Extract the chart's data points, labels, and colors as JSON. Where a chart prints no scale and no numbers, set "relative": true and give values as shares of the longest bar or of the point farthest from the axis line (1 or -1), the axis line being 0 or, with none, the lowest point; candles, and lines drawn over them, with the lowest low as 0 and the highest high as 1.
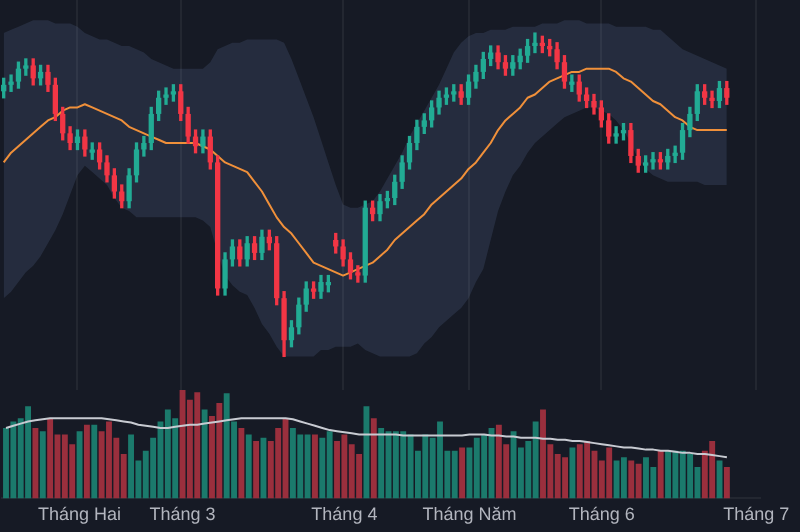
{
  "chart_data": [
    {
      "type": "candlestick",
      "relative": true,
      "tick_labels": false,
      "grid": "x",
      "categories": [
        null,
        null,
        null,
        null,
        null,
        null,
        null,
        null,
        null,
        null,
        null,
        null,
        null,
        null,
        null,
        null,
        null,
        null,
        null,
        null,
        null,
        null,
        null,
        null,
        null,
        null,
        null,
        null,
        null,
        null,
        null,
        null,
        null,
        null,
        null,
        null,
        null,
        null,
        null,
        null,
        null,
        null,
        null,
        null,
        null,
        null,
        null,
        null,
        null,
        null,
        null,
        null,
        null,
        null,
        null,
        null,
        null,
        null,
        null,
        null,
        null,
        null,
        null,
        null,
        null,
        null,
        null,
        null,
        null,
        null,
        null,
        null,
        null,
        null,
        null,
        null,
        null,
        null,
        null,
        null,
        null,
        null,
        null,
        null,
        null,
        null,
        null,
        null,
        null,
        null,
        null,
        null,
        null,
        null,
        null,
        null,
        null,
        null,
        null,
        null,
        null,
        null,
        null
      ],
      "ohlc": [
        [
          0.82,
          0.86,
          0.8,
          0.84
        ],
        [
          0.84,
          0.87,
          0.82,
          0.85
        ],
        [
          0.85,
          0.91,
          0.83,
          0.89
        ],
        [
          0.89,
          0.92,
          0.87,
          0.9
        ],
        [
          0.9,
          0.92,
          0.84,
          0.86
        ],
        [
          0.86,
          0.9,
          0.84,
          0.88
        ],
        [
          0.88,
          0.9,
          0.82,
          0.84
        ],
        [
          0.84,
          0.86,
          0.73,
          0.75
        ],
        [
          0.75,
          0.77,
          0.67,
          0.69
        ],
        [
          0.69,
          0.71,
          0.64,
          0.66
        ],
        [
          0.66,
          0.7,
          0.64,
          0.68
        ],
        [
          0.68,
          0.7,
          0.62,
          0.64
        ],
        [
          0.63,
          0.66,
          0.61,
          0.64
        ],
        [
          0.64,
          0.66,
          0.58,
          0.6
        ],
        [
          0.6,
          0.62,
          0.54,
          0.56
        ],
        [
          0.56,
          0.58,
          0.49,
          0.51
        ],
        [
          0.51,
          0.53,
          0.46,
          0.48
        ],
        [
          0.48,
          0.58,
          0.46,
          0.56
        ],
        [
          0.56,
          0.66,
          0.54,
          0.64
        ],
        [
          0.64,
          0.68,
          0.62,
          0.66
        ],
        [
          0.66,
          0.77,
          0.64,
          0.75
        ],
        [
          0.75,
          0.82,
          0.73,
          0.8
        ],
        [
          0.8,
          0.83,
          0.78,
          0.81
        ],
        [
          0.81,
          0.84,
          0.79,
          0.82
        ],
        [
          0.82,
          0.84,
          0.73,
          0.75
        ],
        [
          0.75,
          0.77,
          0.66,
          0.68
        ],
        [
          0.68,
          0.7,
          0.63,
          0.65
        ],
        [
          0.65,
          0.7,
          0.63,
          0.68
        ],
        [
          0.68,
          0.7,
          0.58,
          0.6
        ],
        [
          0.6,
          0.62,
          0.19,
          0.21
        ],
        [
          0.21,
          0.32,
          0.19,
          0.3
        ],
        [
          0.3,
          0.36,
          0.28,
          0.34
        ],
        [
          0.34,
          0.36,
          0.28,
          0.3
        ],
        [
          0.3,
          0.37,
          0.28,
          0.35
        ],
        [
          0.35,
          0.37,
          0.3,
          0.32
        ],
        [
          0.32,
          0.39,
          0.3,
          0.37
        ],
        [
          0.37,
          0.39,
          0.33,
          0.35
        ],
        [
          0.35,
          0.37,
          0.16,
          0.18
        ],
        [
          0.18,
          0.2,
          0.0,
          0.05
        ],
        [
          0.05,
          0.11,
          0.03,
          0.09
        ],
        [
          0.09,
          0.18,
          0.07,
          0.16
        ],
        [
          0.16,
          0.23,
          0.14,
          0.21
        ],
        [
          0.21,
          0.23,
          0.18,
          0.2
        ],
        [
          0.2,
          0.25,
          0.18,
          0.23
        ],
        [
          0.22,
          0.25,
          0.2,
          0.23
        ],
        [
          0.36,
          0.38,
          0.32,
          0.34
        ],
        [
          0.34,
          0.36,
          0.28,
          0.3
        ],
        [
          0.3,
          0.32,
          0.24,
          0.26
        ],
        [
          0.26,
          0.28,
          0.23,
          0.25
        ],
        [
          0.25,
          0.48,
          0.23,
          0.46
        ],
        [
          0.46,
          0.48,
          0.42,
          0.44
        ],
        [
          0.44,
          0.5,
          0.42,
          0.48
        ],
        [
          0.48,
          0.51,
          0.46,
          0.49
        ],
        [
          0.49,
          0.56,
          0.47,
          0.54
        ],
        [
          0.54,
          0.62,
          0.52,
          0.6
        ],
        [
          0.6,
          0.68,
          0.58,
          0.66
        ],
        [
          0.66,
          0.73,
          0.64,
          0.71
        ],
        [
          0.71,
          0.75,
          0.69,
          0.73
        ],
        [
          0.73,
          0.79,
          0.71,
          0.77
        ],
        [
          0.77,
          0.82,
          0.75,
          0.8
        ],
        [
          0.8,
          0.83,
          0.78,
          0.81
        ],
        [
          0.81,
          0.84,
          0.79,
          0.82
        ],
        [
          0.82,
          0.84,
          0.78,
          0.8
        ],
        [
          0.8,
          0.87,
          0.78,
          0.85
        ],
        [
          0.85,
          0.9,
          0.83,
          0.88
        ],
        [
          0.88,
          0.94,
          0.86,
          0.92
        ],
        [
          0.92,
          0.96,
          0.9,
          0.94
        ],
        [
          0.94,
          0.96,
          0.89,
          0.91
        ],
        [
          0.91,
          0.93,
          0.87,
          0.89
        ],
        [
          0.89,
          0.93,
          0.87,
          0.91
        ],
        [
          0.91,
          0.95,
          0.89,
          0.93
        ],
        [
          0.93,
          0.98,
          0.91,
          0.96
        ],
        [
          0.96,
          1.0,
          0.94,
          0.97
        ],
        [
          0.97,
          0.99,
          0.94,
          0.96
        ],
        [
          0.96,
          0.98,
          0.93,
          0.95
        ],
        [
          0.95,
          0.97,
          0.89,
          0.91
        ],
        [
          0.91,
          0.93,
          0.83,
          0.85
        ],
        [
          0.84,
          0.87,
          0.82,
          0.85
        ],
        [
          0.85,
          0.87,
          0.79,
          0.81
        ],
        [
          0.81,
          0.83,
          0.77,
          0.79
        ],
        [
          0.79,
          0.81,
          0.75,
          0.77
        ],
        [
          0.77,
          0.79,
          0.71,
          0.73
        ],
        [
          0.73,
          0.75,
          0.66,
          0.68
        ],
        [
          0.68,
          0.71,
          0.66,
          0.69
        ],
        [
          0.69,
          0.72,
          0.67,
          0.7
        ],
        [
          0.7,
          0.72,
          0.6,
          0.62
        ],
        [
          0.62,
          0.64,
          0.57,
          0.59
        ],
        [
          0.59,
          0.62,
          0.57,
          0.6
        ],
        [
          0.6,
          0.63,
          0.58,
          0.61
        ],
        [
          0.61,
          0.63,
          0.58,
          0.6
        ],
        [
          0.6,
          0.64,
          0.58,
          0.62
        ],
        [
          0.62,
          0.65,
          0.6,
          0.63
        ],
        [
          0.63,
          0.72,
          0.61,
          0.7
        ],
        [
          0.7,
          0.77,
          0.68,
          0.75
        ],
        [
          0.75,
          0.84,
          0.73,
          0.82
        ],
        [
          0.82,
          0.84,
          0.78,
          0.8
        ],
        [
          0.8,
          0.82,
          0.77,
          0.79
        ],
        [
          0.79,
          0.85,
          0.77,
          0.83
        ],
        [
          0.83,
          0.85,
          0.78,
          0.8
        ],
        null,
        null,
        null,
        null
      ],
      "colors": [
        "#22ab94",
        "#22ab94",
        "#22ab94",
        "#22ab94",
        "#f23645",
        "#22ab94",
        "#f23645",
        "#f23645",
        "#f23645",
        "#f23645",
        "#22ab94",
        "#f23645",
        "#22ab94",
        "#f23645",
        "#f23645",
        "#f23645",
        "#f23645",
        "#22ab94",
        "#22ab94",
        "#22ab94",
        "#22ab94",
        "#22ab94",
        "#22ab94",
        "#22ab94",
        "#f23645",
        "#f23645",
        "#f23645",
        "#22ab94",
        "#f23645",
        "#f23645",
        "#22ab94",
        "#22ab94",
        "#f23645",
        "#22ab94",
        "#f23645",
        "#22ab94",
        "#f23645",
        "#f23645",
        "#f23645",
        "#22ab94",
        "#22ab94",
        "#22ab94",
        "#f23645",
        "#22ab94",
        "#22ab94",
        "#f23645",
        "#f23645",
        "#f23645",
        "#f23645",
        "#22ab94",
        "#f23645",
        "#22ab94",
        "#22ab94",
        "#22ab94",
        "#22ab94",
        "#22ab94",
        "#22ab94",
        "#22ab94",
        "#22ab94",
        "#22ab94",
        "#22ab94",
        "#22ab94",
        "#f23645",
        "#22ab94",
        "#22ab94",
        "#22ab94",
        "#22ab94",
        "#f23645",
        "#f23645",
        "#22ab94",
        "#22ab94",
        "#22ab94",
        "#22ab94",
        "#f23645",
        "#f23645",
        "#f23645",
        "#f23645",
        "#22ab94",
        "#f23645",
        "#f23645",
        "#f23645",
        "#f23645",
        "#f23645",
        "#22ab94",
        "#22ab94",
        "#f23645",
        "#f23645",
        "#22ab94",
        "#22ab94",
        "#f23645",
        "#22ab94",
        "#22ab94",
        "#22ab94",
        "#22ab94",
        "#22ab94",
        "#f23645",
        "#f23645",
        "#22ab94",
        "#f23645",
        null,
        null,
        null,
        null
      ],
      "series": [
        {
          "type": "line",
          "color": "#f0903a",
          "values": [
            0.6,
            0.63,
            0.65,
            0.67,
            0.69,
            0.71,
            0.73,
            0.74,
            0.76,
            0.77,
            0.77,
            0.78,
            0.77,
            0.76,
            0.75,
            0.74,
            0.73,
            0.71,
            0.7,
            0.69,
            0.68,
            0.67,
            0.66,
            0.66,
            0.66,
            0.66,
            0.66,
            0.65,
            0.64,
            0.62,
            0.6,
            0.59,
            0.58,
            0.57,
            0.54,
            0.51,
            0.47,
            0.43,
            0.4,
            0.38,
            0.35,
            0.32,
            0.29,
            0.28,
            0.27,
            0.26,
            0.25,
            0.26,
            0.27,
            0.28,
            0.29,
            0.31,
            0.33,
            0.36,
            0.38,
            0.4,
            0.42,
            0.44,
            0.47,
            0.49,
            0.51,
            0.53,
            0.55,
            0.58,
            0.6,
            0.63,
            0.66,
            0.7,
            0.73,
            0.75,
            0.77,
            0.8,
            0.81,
            0.83,
            0.85,
            0.86,
            0.87,
            0.88,
            0.88,
            0.89,
            0.89,
            0.89,
            0.89,
            0.88,
            0.86,
            0.85,
            0.83,
            0.81,
            0.79,
            0.78,
            0.76,
            0.74,
            0.73,
            0.71,
            0.7,
            0.7,
            0.7,
            0.7,
            0.7,
            null,
            null,
            null,
            null
          ],
          "lower": [
            0.18,
            0.2,
            0.23,
            0.26,
            0.28,
            0.31,
            0.35,
            0.39,
            0.44,
            0.5,
            0.56,
            0.59,
            0.57,
            0.55,
            0.53,
            0.49,
            0.46,
            0.45,
            0.43,
            0.43,
            0.43,
            0.43,
            0.43,
            0.43,
            0.43,
            0.43,
            0.43,
            0.42,
            0.4,
            0.32,
            0.25,
            0.22,
            0.2,
            0.19,
            0.15,
            0.1,
            0.07,
            0.03,
            0.0,
            0.0,
            0.0,
            0.0,
            0.0,
            0.02,
            0.02,
            0.03,
            0.03,
            0.03,
            0.04,
            0.02,
            0.01,
            0.0,
            0.0,
            0.0,
            0.0,
            0.0,
            0.01,
            0.04,
            0.06,
            0.09,
            0.11,
            0.13,
            0.15,
            0.18,
            0.23,
            0.27,
            0.36,
            0.45,
            0.51,
            0.56,
            0.59,
            0.63,
            0.66,
            0.68,
            0.7,
            0.72,
            0.74,
            0.75,
            0.76,
            0.77,
            0.77,
            0.76,
            0.75,
            0.73,
            0.7,
            0.66,
            0.61,
            0.58,
            0.56,
            0.55,
            0.54,
            0.54,
            0.54,
            0.54,
            0.54,
            0.53,
            0.53,
            0.53,
            0.53,
            null,
            null,
            null,
            null
          ],
          "upper": [
            1.0,
            1.01,
            1.02,
            1.03,
            1.04,
            1.04,
            1.04,
            1.03,
            1.03,
            1.03,
            1.02,
            1.0,
            0.99,
            0.98,
            0.98,
            0.97,
            0.96,
            0.96,
            0.95,
            0.94,
            0.92,
            0.91,
            0.9,
            0.89,
            0.89,
            0.89,
            0.89,
            0.89,
            0.91,
            0.95,
            0.96,
            0.97,
            0.97,
            0.98,
            0.98,
            0.98,
            0.98,
            0.98,
            0.97,
            0.92,
            0.86,
            0.8,
            0.74,
            0.67,
            0.6,
            0.53,
            0.47,
            0.46,
            0.46,
            0.47,
            0.48,
            0.51,
            0.55,
            0.59,
            0.63,
            0.68,
            0.72,
            0.76,
            0.8,
            0.84,
            0.89,
            0.94,
            0.97,
            0.99,
            1.0,
            1.0,
            1.01,
            1.01,
            1.01,
            1.02,
            1.02,
            1.02,
            1.02,
            1.03,
            1.03,
            1.03,
            1.04,
            1.04,
            1.04,
            1.03,
            1.03,
            1.03,
            1.03,
            1.02,
            1.02,
            1.02,
            1.02,
            1.02,
            1.01,
            1.01,
            0.99,
            0.97,
            0.95,
            0.94,
            0.93,
            0.92,
            0.91,
            0.9,
            0.89,
            null,
            null,
            null,
            null
          ]
        }
      ]
    },
    {
      "type": "bar",
      "relative": true,
      "tick_labels": "x",
      "categories": [
        null,
        null,
        null,
        null,
        null,
        null,
        null,
        null,
        null,
        null,
        "Tháng Hai",
        null,
        null,
        null,
        null,
        null,
        null,
        null,
        null,
        null,
        null,
        null,
        null,
        null,
        "Tháng 3",
        null,
        null,
        null,
        null,
        null,
        null,
        null,
        null,
        null,
        null,
        null,
        null,
        null,
        null,
        null,
        null,
        null,
        null,
        null,
        null,
        null,
        "Tháng 4",
        null,
        null,
        null,
        null,
        null,
        null,
        null,
        null,
        null,
        null,
        null,
        null,
        null,
        null,
        null,
        null,
        "Tháng Năm",
        null,
        null,
        null,
        null,
        null,
        null,
        null,
        null,
        null,
        null,
        null,
        null,
        null,
        null,
        null,
        null,
        null,
        "Tháng 6",
        null,
        null,
        null,
        null,
        null,
        null,
        null,
        null,
        null,
        null,
        null,
        null,
        null,
        null,
        null,
        null,
        null,
        null,
        null,
        null,
        "Tháng 7"
      ],
      "values": [
        0.65,
        0.71,
        0.74,
        0.85,
        0.65,
        0.62,
        0.74,
        0.59,
        0.59,
        0.5,
        0.62,
        0.68,
        0.68,
        0.62,
        0.71,
        0.56,
        0.41,
        0.59,
        0.35,
        0.44,
        0.56,
        0.71,
        0.82,
        0.74,
        1.0,
        0.91,
        0.98,
        0.82,
        0.76,
        0.88,
        0.97,
        0.71,
        0.65,
        0.59,
        0.53,
        0.56,
        0.53,
        0.65,
        0.74,
        0.65,
        0.59,
        0.59,
        0.59,
        0.56,
        0.62,
        0.53,
        0.59,
        0.5,
        0.41,
        0.85,
        0.74,
        0.65,
        0.62,
        0.62,
        0.62,
        0.59,
        0.44,
        0.59,
        0.56,
        0.71,
        0.44,
        0.44,
        0.47,
        0.47,
        0.56,
        0.59,
        0.65,
        0.68,
        0.5,
        0.62,
        0.47,
        0.53,
        0.71,
        0.82,
        0.5,
        0.41,
        0.38,
        0.47,
        0.5,
        0.53,
        0.44,
        0.35,
        0.47,
        0.35,
        0.38,
        0.35,
        0.32,
        0.38,
        0.29,
        0.44,
        0.44,
        0.44,
        0.44,
        0.41,
        0.29,
        0.44,
        0.53,
        0.35,
        0.29,
        null,
        null,
        null,
        null
      ],
      "colors": [
        "#1b7a6c",
        "#1b7a6c",
        "#1b7a6c",
        "#1b7a6c",
        "#9a2f3d",
        "#1b7a6c",
        "#9a2f3d",
        "#9a2f3d",
        "#9a2f3d",
        "#9a2f3d",
        "#1b7a6c",
        "#9a2f3d",
        "#1b7a6c",
        "#9a2f3d",
        "#9a2f3d",
        "#9a2f3d",
        "#9a2f3d",
        "#1b7a6c",
        "#1b7a6c",
        "#1b7a6c",
        "#1b7a6c",
        "#1b7a6c",
        "#1b7a6c",
        "#1b7a6c",
        "#9a2f3d",
        "#9a2f3d",
        "#9a2f3d",
        "#1b7a6c",
        "#9a2f3d",
        "#9a2f3d",
        "#1b7a6c",
        "#1b7a6c",
        "#9a2f3d",
        "#1b7a6c",
        "#9a2f3d",
        "#1b7a6c",
        "#9a2f3d",
        "#9a2f3d",
        "#9a2f3d",
        "#1b7a6c",
        "#1b7a6c",
        "#1b7a6c",
        "#9a2f3d",
        "#1b7a6c",
        "#1b7a6c",
        "#9a2f3d",
        "#9a2f3d",
        "#9a2f3d",
        "#9a2f3d",
        "#1b7a6c",
        "#9a2f3d",
        "#1b7a6c",
        "#1b7a6c",
        "#1b7a6c",
        "#1b7a6c",
        "#1b7a6c",
        "#1b7a6c",
        "#1b7a6c",
        "#1b7a6c",
        "#1b7a6c",
        "#1b7a6c",
        "#1b7a6c",
        "#9a2f3d",
        "#1b7a6c",
        "#1b7a6c",
        "#1b7a6c",
        "#1b7a6c",
        "#9a2f3d",
        "#9a2f3d",
        "#1b7a6c",
        "#1b7a6c",
        "#1b7a6c",
        "#1b7a6c",
        "#9a2f3d",
        "#9a2f3d",
        "#9a2f3d",
        "#9a2f3d",
        "#1b7a6c",
        "#9a2f3d",
        "#9a2f3d",
        "#9a2f3d",
        "#9a2f3d",
        "#9a2f3d",
        "#1b7a6c",
        "#1b7a6c",
        "#9a2f3d",
        "#9a2f3d",
        "#1b7a6c",
        "#1b7a6c",
        "#9a2f3d",
        "#1b7a6c",
        "#1b7a6c",
        "#1b7a6c",
        "#1b7a6c",
        "#1b7a6c",
        "#9a2f3d",
        "#9a2f3d",
        "#1b7a6c",
        "#9a2f3d",
        null,
        null,
        null,
        null
      ],
      "series": [
        {
          "type": "line",
          "color": "#c8cbd2",
          "values": [
            0.65,
            0.67,
            0.69,
            0.71,
            0.72,
            0.73,
            0.74,
            0.74,
            0.74,
            0.74,
            0.74,
            0.74,
            0.74,
            0.74,
            0.73,
            0.72,
            0.71,
            0.7,
            0.68,
            0.67,
            0.66,
            0.65,
            0.65,
            0.66,
            0.67,
            0.68,
            0.68,
            0.69,
            0.7,
            0.71,
            0.72,
            0.73,
            0.74,
            0.74,
            0.74,
            0.74,
            0.74,
            0.74,
            0.74,
            0.73,
            0.71,
            0.69,
            0.67,
            0.65,
            0.63,
            0.62,
            0.61,
            0.6,
            0.59,
            0.59,
            0.59,
            0.59,
            0.59,
            0.59,
            0.58,
            0.58,
            0.58,
            0.58,
            0.58,
            0.58,
            0.58,
            0.58,
            0.58,
            0.59,
            0.59,
            0.59,
            0.58,
            0.58,
            0.57,
            0.57,
            0.56,
            0.56,
            0.56,
            0.55,
            0.55,
            0.54,
            0.54,
            0.53,
            0.53,
            0.52,
            0.51,
            0.5,
            0.49,
            0.48,
            0.47,
            0.47,
            0.46,
            0.45,
            0.45,
            0.44,
            0.44,
            0.43,
            0.42,
            0.42,
            0.41,
            0.41,
            0.4,
            0.39,
            0.38,
            null,
            null,
            null,
            null
          ]
        }
      ]
    }
  ]
}
